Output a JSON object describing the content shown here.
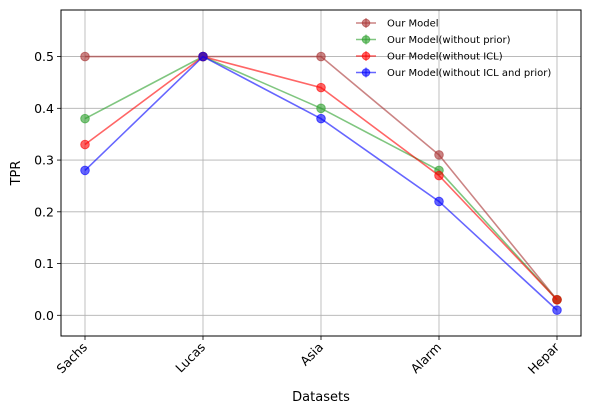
{
  "chart_data": {
    "type": "line",
    "categories": [
      "Sachs",
      "Lucas",
      "Asia",
      "Alarm",
      "Hepar"
    ],
    "xlabel": "Datasets",
    "ylabel": "TPR",
    "ylim": [
      -0.04,
      0.59
    ],
    "yticks": [
      "0.0",
      "0.1",
      "0.2",
      "0.3",
      "0.4",
      "0.5"
    ],
    "grid": true,
    "legend_position": "top-right",
    "series": [
      {
        "name": "Our Model",
        "color": "#a83232",
        "values": [
          0.5,
          0.5,
          0.5,
          0.31,
          0.03
        ]
      },
      {
        "name": "Our Model(without prior)",
        "color": "#2ca02c",
        "values": [
          0.38,
          0.5,
          0.4,
          0.28,
          0.03
        ]
      },
      {
        "name": "Our Model(without ICL)",
        "color": "#ff0000",
        "values": [
          0.33,
          0.5,
          0.44,
          0.27,
          0.03
        ]
      },
      {
        "name": "Our Model(without ICL and prior)",
        "color": "#0000ff",
        "values": [
          0.28,
          0.5,
          0.38,
          0.22,
          0.01
        ]
      }
    ]
  }
}
